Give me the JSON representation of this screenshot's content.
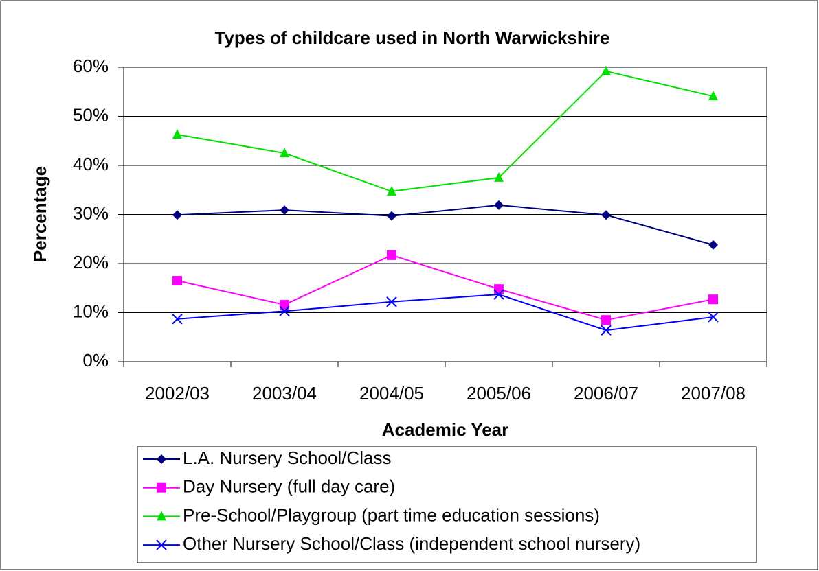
{
  "chart_data": {
    "type": "line",
    "title": "Types of childcare used in North Warwickshire",
    "x_label": "Academic Year",
    "y_label": "Percentage",
    "categories": [
      "2002/03",
      "2003/04",
      "2004/05",
      "2005/06",
      "2006/07",
      "2007/08"
    ],
    "series": [
      {
        "name": "L.A. Nursery School/Class",
        "color": "#000080",
        "marker": "diamond",
        "values": [
          29.9,
          30.9,
          29.7,
          31.9,
          29.9,
          23.8
        ]
      },
      {
        "name": "Day Nursery (full day care)",
        "color": "#ff00ff",
        "marker": "square",
        "values": [
          16.5,
          11.6,
          21.7,
          14.8,
          8.5,
          12.7
        ]
      },
      {
        "name": "Pre-School/Playgroup (part time education sessions)",
        "color": "#00e000",
        "marker": "triangle",
        "values": [
          46.3,
          42.5,
          34.7,
          37.5,
          59.2,
          54.1
        ]
      },
      {
        "name": "Other Nursery School/Class (independent school nursery)",
        "color": "#0000ff",
        "marker": "x",
        "values": [
          8.7,
          10.3,
          12.2,
          13.7,
          6.4,
          9.1
        ]
      }
    ],
    "ylim": [
      0,
      60
    ],
    "yticks": [
      {
        "value": 0,
        "label": "0%"
      },
      {
        "value": 10,
        "label": "10%"
      },
      {
        "value": 20,
        "label": "20%"
      },
      {
        "value": 30,
        "label": "30%"
      },
      {
        "value": 40,
        "label": "40%"
      },
      {
        "value": 50,
        "label": "50%"
      },
      {
        "value": 60,
        "label": "60%"
      }
    ],
    "grid": true,
    "legend": "bottom"
  }
}
